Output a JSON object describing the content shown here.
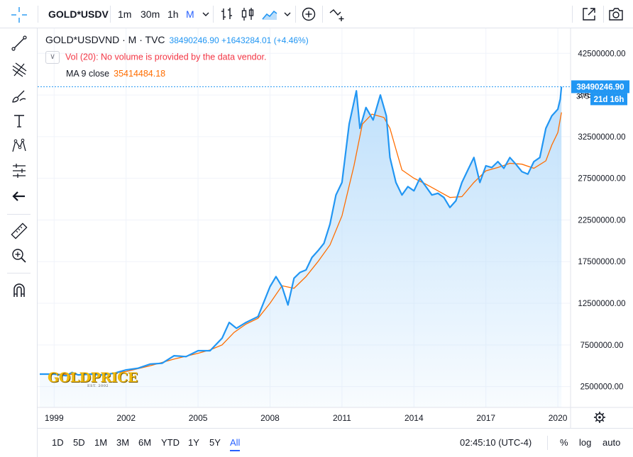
{
  "toolbar": {
    "symbol": "GOLD*USDV",
    "intervals": [
      "1m",
      "30m",
      "1h",
      "M"
    ],
    "active_interval": "M"
  },
  "legend": {
    "symbol_line": "GOLD*USDVND · M · TVC",
    "price_line": "38490246.90 +1643284.01 (+4.46%)",
    "volume_line": "Vol (20): No volume is provided by the data vendor.",
    "ma_name": "MA 9 close",
    "ma_value": "35414484.18"
  },
  "price_axis": {
    "last_price_label": "38490246.90",
    "countdown_label": "21d 16h",
    "partial_label": "375"
  },
  "time_range_buttons": [
    "1D",
    "5D",
    "1M",
    "3M",
    "6M",
    "YTD",
    "1Y",
    "5Y",
    "All"
  ],
  "active_range": "All",
  "clock": "02:45:10 (UTC-4)",
  "scale_buttons": [
    "%",
    "log",
    "auto"
  ],
  "logo": {
    "text": "GOLDPRICE",
    "subtext": "EST. 2002"
  },
  "colors": {
    "price_line": "#2196f3",
    "ma_line": "#ff6d00",
    "area_top": "#bbdefb",
    "accent": "#2962ff",
    "grid": "#f0f3fa",
    "price_label_bg": "#2196f3"
  },
  "chart_data": {
    "type": "area",
    "title": "GOLD*USDVND · M · TVC",
    "xlabel": "",
    "ylabel": "",
    "x_range": [
      1998.4,
      2020.5
    ],
    "ylim": [
      0,
      45500000
    ],
    "yticks": [
      2500000,
      7500000,
      12500000,
      17500000,
      22500000,
      27500000,
      32500000,
      37500000,
      42500000
    ],
    "ytick_labels": [
      "2500000.00",
      "7500000.00",
      "12500000.00",
      "17500000.00",
      "22500000.00",
      "27500000.00",
      "32500000.00",
      "37500000.00",
      "42500000.00"
    ],
    "xticks": [
      1999,
      2002,
      2005,
      2008,
      2011,
      2014,
      2017,
      2020
    ],
    "xtick_labels": [
      "1999",
      "2002",
      "2005",
      "2008",
      "2011",
      "2014",
      "2017",
      "2020"
    ],
    "grid": true,
    "last_value": 38490246.9,
    "series": [
      {
        "name": "GOLD*USDVND",
        "x": [
          1998.4,
          1999.0,
          1999.5,
          1999.75,
          2000.0,
          2000.5,
          2001.0,
          2001.5,
          2002.0,
          2002.5,
          2003.0,
          2003.5,
          2004.0,
          2004.5,
          2005.0,
          2005.5,
          2006.0,
          2006.3,
          2006.6,
          2007.0,
          2007.5,
          2008.0,
          2008.25,
          2008.5,
          2008.75,
          2009.0,
          2009.25,
          2009.5,
          2009.75,
          2010.0,
          2010.25,
          2010.5,
          2010.75,
          2011.0,
          2011.3,
          2011.6,
          2011.75,
          2012.0,
          2012.3,
          2012.6,
          2012.85,
          2013.0,
          2013.25,
          2013.5,
          2013.75,
          2014.0,
          2014.25,
          2014.5,
          2014.75,
          2015.0,
          2015.25,
          2015.5,
          2015.75,
          2016.0,
          2016.25,
          2016.5,
          2016.75,
          2017.0,
          2017.25,
          2017.5,
          2017.75,
          2018.0,
          2018.25,
          2018.5,
          2018.75,
          2019.0,
          2019.25,
          2019.5,
          2019.75,
          2020.0,
          2020.1,
          2020.15
        ],
        "values": [
          4000000,
          4000000,
          3800000,
          4200000,
          3900000,
          4000000,
          3900000,
          4100000,
          4500000,
          4700000,
          5200000,
          5300000,
          6200000,
          6100000,
          6800000,
          6800000,
          8300000,
          10200000,
          9500000,
          10200000,
          10900000,
          14500000,
          15700000,
          14500000,
          12300000,
          15500000,
          16200000,
          16500000,
          18000000,
          18800000,
          19700000,
          22000000,
          25500000,
          27000000,
          34000000,
          38000000,
          33500000,
          36000000,
          34500000,
          37500000,
          35000000,
          30000000,
          27000000,
          25500000,
          26500000,
          26000000,
          27500000,
          26500000,
          25500000,
          25700000,
          25200000,
          24000000,
          24800000,
          27000000,
          28500000,
          30000000,
          27000000,
          29000000,
          28800000,
          29500000,
          28700000,
          30000000,
          29200000,
          28300000,
          28000000,
          29500000,
          30000000,
          33500000,
          35000000,
          35800000,
          37000000,
          38490246.9
        ]
      },
      {
        "name": "MA 9 close",
        "x": [
          1998.4,
          1999.0,
          2000.0,
          2001.0,
          2002.0,
          2003.0,
          2004.0,
          2005.0,
          2005.5,
          2006.0,
          2006.5,
          2007.0,
          2007.5,
          2008.0,
          2008.5,
          2009.0,
          2009.5,
          2010.0,
          2010.5,
          2011.0,
          2011.5,
          2011.85,
          2012.25,
          2012.75,
          2013.0,
          2013.25,
          2013.5,
          2014.0,
          2014.5,
          2015.0,
          2015.5,
          2016.0,
          2016.5,
          2017.0,
          2017.5,
          2018.0,
          2018.5,
          2019.0,
          2019.5,
          2019.75,
          2020.0,
          2020.15
        ],
        "values": [
          4000000,
          4000000,
          3950000,
          3950000,
          4300000,
          5000000,
          5800000,
          6500000,
          6900000,
          7500000,
          9000000,
          10000000,
          10700000,
          12500000,
          14600000,
          14300000,
          15700000,
          17500000,
          19500000,
          23000000,
          29000000,
          34000000,
          35200000,
          34800000,
          33500000,
          31000000,
          28500000,
          27500000,
          26800000,
          26000000,
          25200000,
          25300000,
          27000000,
          28400000,
          28800000,
          29300000,
          29200000,
          28700000,
          29600000,
          31500000,
          33000000,
          35414484.18
        ]
      }
    ]
  }
}
